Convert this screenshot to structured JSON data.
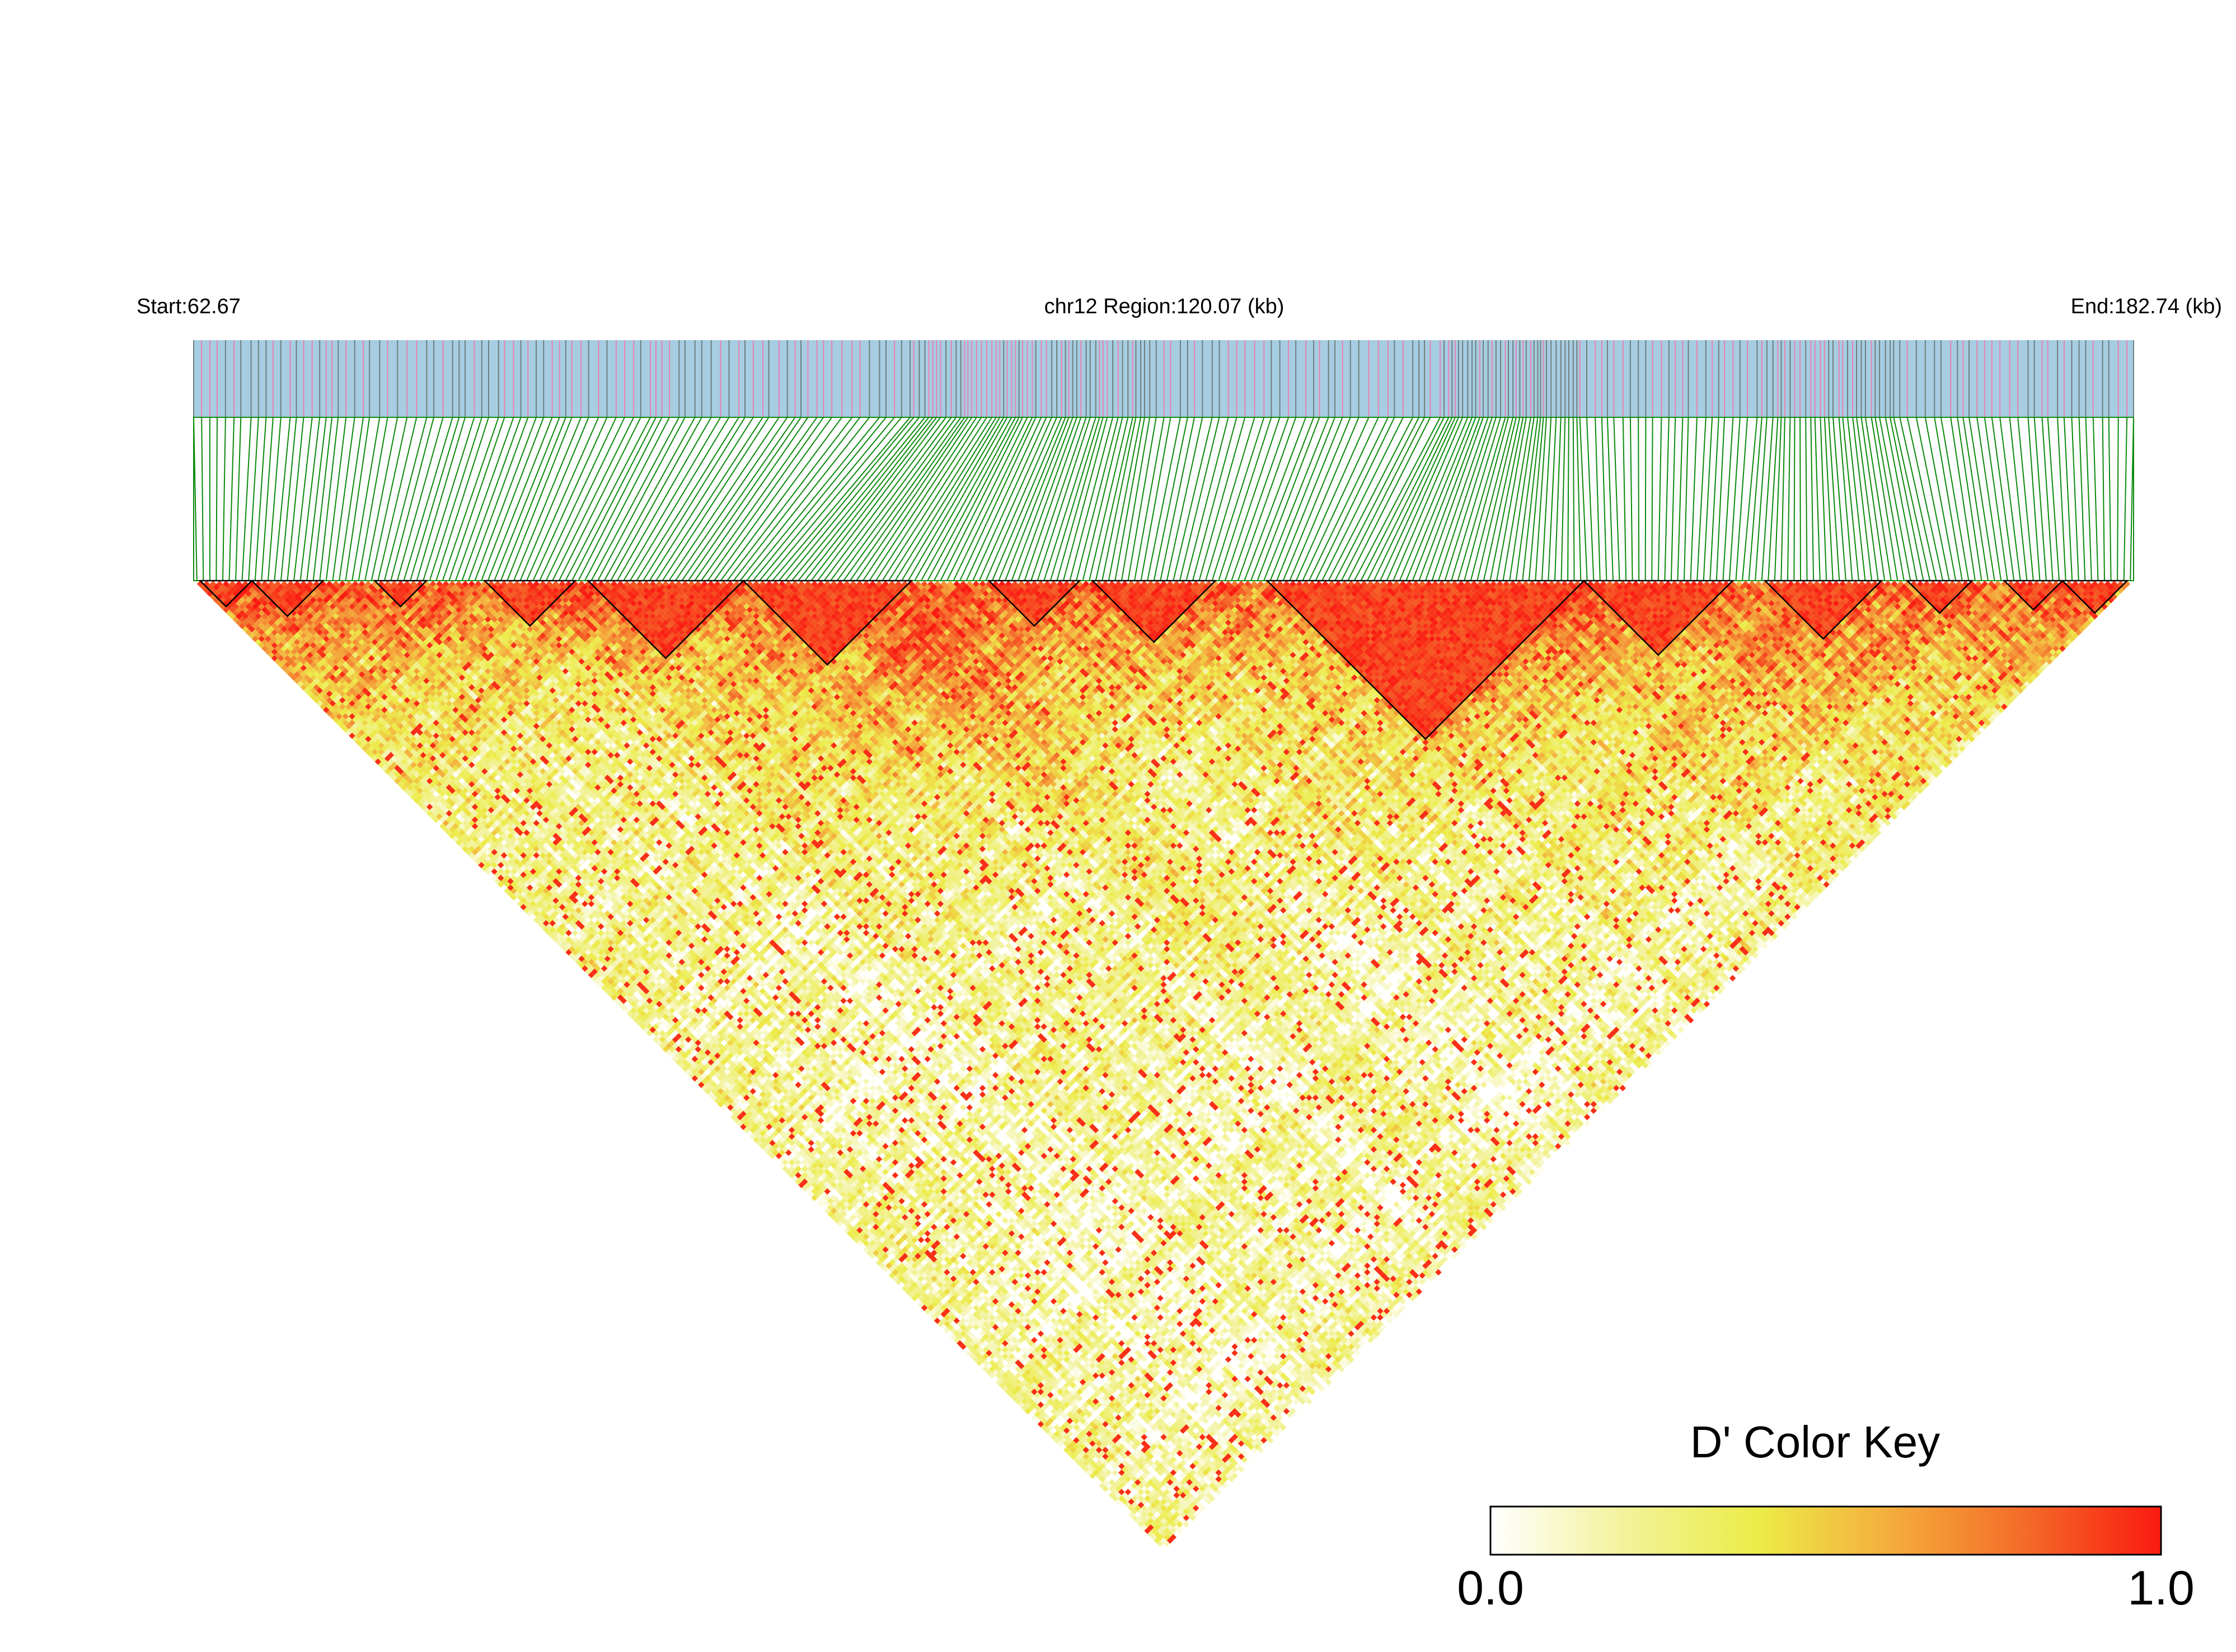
{
  "header": {
    "start_label": "Start:62.67",
    "region_label": "chr12 Region:120.07 (kb)",
    "end_label": "End:182.74 (kb)"
  },
  "chart_data": {
    "type": "heatmap",
    "subtype": "LD block triangle (pairwise D')",
    "chromosome": "chr12",
    "region_start_kb": 62.67,
    "region_end_kb": 182.74,
    "region_length_kb": 120.07,
    "snp_count_approx": 300,
    "value_range": [
      0.0,
      1.0
    ],
    "color_key": {
      "title": "D' Color Key",
      "min_label": "0.0",
      "max_label": "1.0",
      "stops": [
        "#ffffff",
        "#f2f29a",
        "#ecec48",
        "#f4ac3c",
        "#f46a28",
        "#fa1a10"
      ]
    },
    "colors": {
      "track_background": "#a6cde2",
      "snp_tick_major": "#e683b4",
      "snp_tick_minor": "#6f7f7f",
      "connector_lines": "#0b8a0b",
      "block_outline": "#000000"
    },
    "high_ld_blocks_kb": [
      [
        62.7,
        66.8
      ],
      [
        66.8,
        71.8
      ],
      [
        76.0,
        80.1
      ],
      [
        84.5,
        91.5
      ],
      [
        92.3,
        104.8
      ],
      [
        104.8,
        113.0
      ],
      [
        116.1,
        120.0
      ],
      [
        120.5,
        129.3
      ],
      [
        133.2,
        148.4
      ],
      [
        148.4,
        158.5
      ],
      [
        160.5,
        165.8
      ],
      [
        167.0,
        171.0
      ],
      [
        173.5,
        178.0
      ],
      [
        178.0,
        182.7
      ]
    ],
    "grid": false,
    "legend_position": "bottom-right"
  }
}
